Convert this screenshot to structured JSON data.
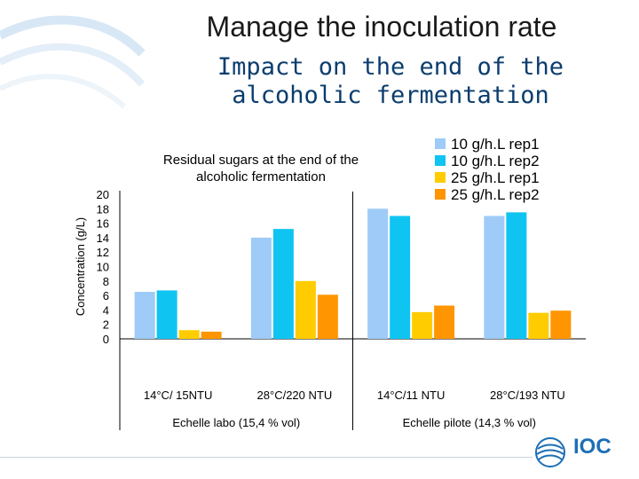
{
  "page": {
    "title": "Manage the inoculation rate",
    "subtitle_line1": "Impact on the end of the",
    "subtitle_line2": "alcoholic fermentation"
  },
  "logo": {
    "text": "IOC"
  },
  "colors": {
    "rep1_10": "#9ecbf7",
    "rep2_10": "#10c4f2",
    "rep1_25": "#ffcc00",
    "rep2_25": "#ff9500",
    "title": "#0b3d6e",
    "logo": "#1d6fb5"
  },
  "chart_data": {
    "type": "bar",
    "title_line1": "Residual sugars at the end of the",
    "title_line2": "alcoholic fermentation",
    "ylabel": "Concentration (g/L)",
    "ylim": [
      0,
      20
    ],
    "yticks": [
      0,
      2,
      4,
      6,
      8,
      10,
      12,
      14,
      16,
      18,
      20
    ],
    "categories": [
      "14°C/ 15NTU",
      "28°C/220 NTU",
      "14°C/11 NTU",
      "28°C/193 NTU"
    ],
    "groups": [
      {
        "label": "Echelle labo (15,4 % vol)",
        "categories": [
          0,
          1
        ]
      },
      {
        "label": "Echelle pilote (14,3 % vol)",
        "categories": [
          2,
          3
        ]
      }
    ],
    "series": [
      {
        "name": "10 g/h.L  rep1",
        "color": "#9ecbf7",
        "values": [
          6.5,
          14.0,
          18.0,
          17.0
        ]
      },
      {
        "name": "10 g/h.L  rep2",
        "color": "#10c4f2",
        "values": [
          6.7,
          15.2,
          17.0,
          17.5
        ]
      },
      {
        "name": "25 g/h.L  rep1",
        "color": "#ffcc00",
        "values": [
          1.2,
          8.0,
          3.7,
          3.6
        ]
      },
      {
        "name": "25 g/h.L  rep2",
        "color": "#ff9500",
        "values": [
          1.0,
          6.1,
          4.6,
          3.9
        ]
      }
    ],
    "legend": "top-right",
    "grid": false
  }
}
